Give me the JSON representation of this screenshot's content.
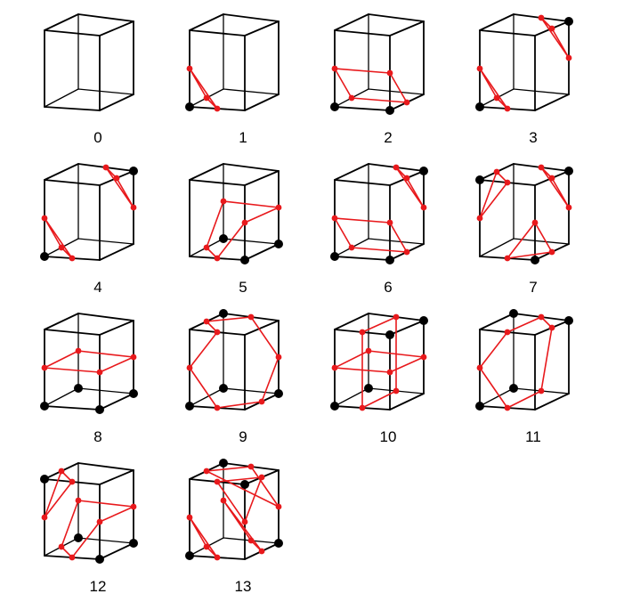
{
  "figure": {
    "title": "",
    "edge_color": "#000000",
    "vertex_marker_color": "#000000",
    "surface_color": "#e8191c",
    "cases": [
      {
        "label": "0",
        "marked_vertices": [],
        "surface_points": [],
        "surface_segments": []
      },
      {
        "label": "1",
        "marked_vertices": [
          0
        ],
        "surface_points": [
          "e0",
          "e3",
          "e8"
        ],
        "surface_segments": [
          [
            "e0",
            "e3"
          ],
          [
            "e3",
            "e8"
          ],
          [
            "e8",
            "e0"
          ]
        ]
      },
      {
        "label": "2",
        "marked_vertices": [
          0,
          1
        ],
        "surface_points": [
          "e3",
          "e1",
          "e9",
          "e8"
        ],
        "surface_segments": [
          [
            "e3",
            "e1"
          ],
          [
            "e1",
            "e9"
          ],
          [
            "e9",
            "e8"
          ],
          [
            "e8",
            "e3"
          ]
        ]
      },
      {
        "label": "3",
        "marked_vertices": [
          0,
          6
        ],
        "surface_points": [
          "e0",
          "e3",
          "e8",
          "e5",
          "e6",
          "e10"
        ],
        "surface_segments": [
          [
            "e0",
            "e3"
          ],
          [
            "e3",
            "e8"
          ],
          [
            "e8",
            "e0"
          ],
          [
            "e5",
            "e6"
          ],
          [
            "e6",
            "e10"
          ],
          [
            "e10",
            "e5"
          ]
        ]
      },
      {
        "label": "4",
        "marked_vertices": [
          0,
          6
        ],
        "surface_points": [
          "e0",
          "e3",
          "e8",
          "e5",
          "e6",
          "e10"
        ],
        "surface_segments": [
          [
            "e0",
            "e3"
          ],
          [
            "e3",
            "e8"
          ],
          [
            "e8",
            "e0"
          ],
          [
            "e5",
            "e6"
          ],
          [
            "e6",
            "e10"
          ],
          [
            "e10",
            "e5"
          ]
        ]
      },
      {
        "label": "5",
        "marked_vertices": [
          1,
          2,
          3
        ],
        "surface_points": [
          "e0",
          "e9",
          "e10",
          "e11",
          "e3"
        ],
        "surface_segments": [
          [
            "e0",
            "e9"
          ],
          [
            "e9",
            "e10"
          ],
          [
            "e10",
            "e11"
          ],
          [
            "e11",
            "e3"
          ],
          [
            "e3",
            "e0"
          ]
        ]
      },
      {
        "label": "6",
        "marked_vertices": [
          0,
          1,
          6
        ],
        "surface_points": [
          "e3",
          "e1",
          "e9",
          "e8",
          "e5",
          "e6",
          "e10"
        ],
        "surface_segments": [
          [
            "e3",
            "e1"
          ],
          [
            "e1",
            "e9"
          ],
          [
            "e9",
            "e8"
          ],
          [
            "e8",
            "e3"
          ],
          [
            "e5",
            "e6"
          ],
          [
            "e6",
            "e10"
          ],
          [
            "e10",
            "e5"
          ]
        ]
      },
      {
        "label": "7",
        "marked_vertices": [
          1,
          4,
          6
        ],
        "surface_points": [
          "e0",
          "e1",
          "e9",
          "e4",
          "e7",
          "e8",
          "e5",
          "e6",
          "e10"
        ],
        "surface_segments": [
          [
            "e0",
            "e1"
          ],
          [
            "e1",
            "e9"
          ],
          [
            "e9",
            "e0"
          ],
          [
            "e4",
            "e7"
          ],
          [
            "e7",
            "e8"
          ],
          [
            "e8",
            "e4"
          ],
          [
            "e5",
            "e6"
          ],
          [
            "e6",
            "e10"
          ],
          [
            "e10",
            "e5"
          ]
        ]
      },
      {
        "label": "8",
        "marked_vertices": [
          0,
          1,
          2,
          3
        ],
        "surface_points": [
          "e8",
          "e9",
          "e10",
          "e11"
        ],
        "surface_segments": [
          [
            "e8",
            "e9"
          ],
          [
            "e9",
            "e10"
          ],
          [
            "e10",
            "e11"
          ],
          [
            "e11",
            "e8"
          ]
        ]
      },
      {
        "label": "9",
        "marked_vertices": [
          0,
          2,
          3,
          7
        ],
        "surface_points": [
          "e0",
          "e1",
          "e10",
          "e6",
          "e7",
          "e4",
          "e8"
        ],
        "surface_segments": [
          [
            "e0",
            "e1"
          ],
          [
            "e1",
            "e10"
          ],
          [
            "e10",
            "e6"
          ],
          [
            "e6",
            "e7"
          ],
          [
            "e7",
            "e4"
          ],
          [
            "e4",
            "e8"
          ],
          [
            "e8",
            "e0"
          ]
        ]
      },
      {
        "label": "10",
        "marked_vertices": [
          0,
          3,
          5,
          6
        ],
        "surface_points": [
          "e0",
          "e2",
          "e6",
          "e4",
          "e8",
          "e11",
          "e10",
          "e9"
        ],
        "surface_segments": [
          [
            "e0",
            "e2"
          ],
          [
            "e2",
            "e6"
          ],
          [
            "e6",
            "e4"
          ],
          [
            "e4",
            "e0"
          ],
          [
            "e8",
            "e11"
          ],
          [
            "e11",
            "e10"
          ],
          [
            "e10",
            "e9"
          ],
          [
            "e9",
            "e8"
          ]
        ]
      },
      {
        "label": "11",
        "marked_vertices": [
          0,
          3,
          6,
          7
        ],
        "surface_points": [
          "e0",
          "e2",
          "e5",
          "e6",
          "e4",
          "e8"
        ],
        "surface_segments": [
          [
            "e0",
            "e2"
          ],
          [
            "e2",
            "e5"
          ],
          [
            "e5",
            "e6"
          ],
          [
            "e6",
            "e4"
          ],
          [
            "e4",
            "e8"
          ],
          [
            "e8",
            "e0"
          ]
        ]
      },
      {
        "label": "12",
        "marked_vertices": [
          1,
          2,
          3,
          4
        ],
        "surface_points": [
          "e0",
          "e9",
          "e10",
          "e11",
          "e3",
          "e4",
          "e7",
          "e8"
        ],
        "surface_segments": [
          [
            "e0",
            "e9"
          ],
          [
            "e9",
            "e10"
          ],
          [
            "e10",
            "e11"
          ],
          [
            "e11",
            "e3"
          ],
          [
            "e3",
            "e0"
          ],
          [
            "e4",
            "e7"
          ],
          [
            "e7",
            "e8"
          ],
          [
            "e8",
            "e4"
          ]
        ]
      },
      {
        "label": "13",
        "marked_vertices": [
          0,
          2,
          5,
          7
        ],
        "surface_points": [
          "e0",
          "e3",
          "e8",
          "e1",
          "e2",
          "e11",
          "e4",
          "e5",
          "e9",
          "e6",
          "e7",
          "e10"
        ],
        "surface_segments": [
          [
            "e0",
            "e3"
          ],
          [
            "e3",
            "e8"
          ],
          [
            "e8",
            "e0"
          ],
          [
            "e1",
            "e2"
          ],
          [
            "e2",
            "e11"
          ],
          [
            "e11",
            "e1"
          ],
          [
            "e4",
            "e5"
          ],
          [
            "e5",
            "e9"
          ],
          [
            "e9",
            "e4"
          ],
          [
            "e6",
            "e7"
          ],
          [
            "e7",
            "e10"
          ],
          [
            "e10",
            "e6"
          ]
        ]
      }
    ]
  }
}
